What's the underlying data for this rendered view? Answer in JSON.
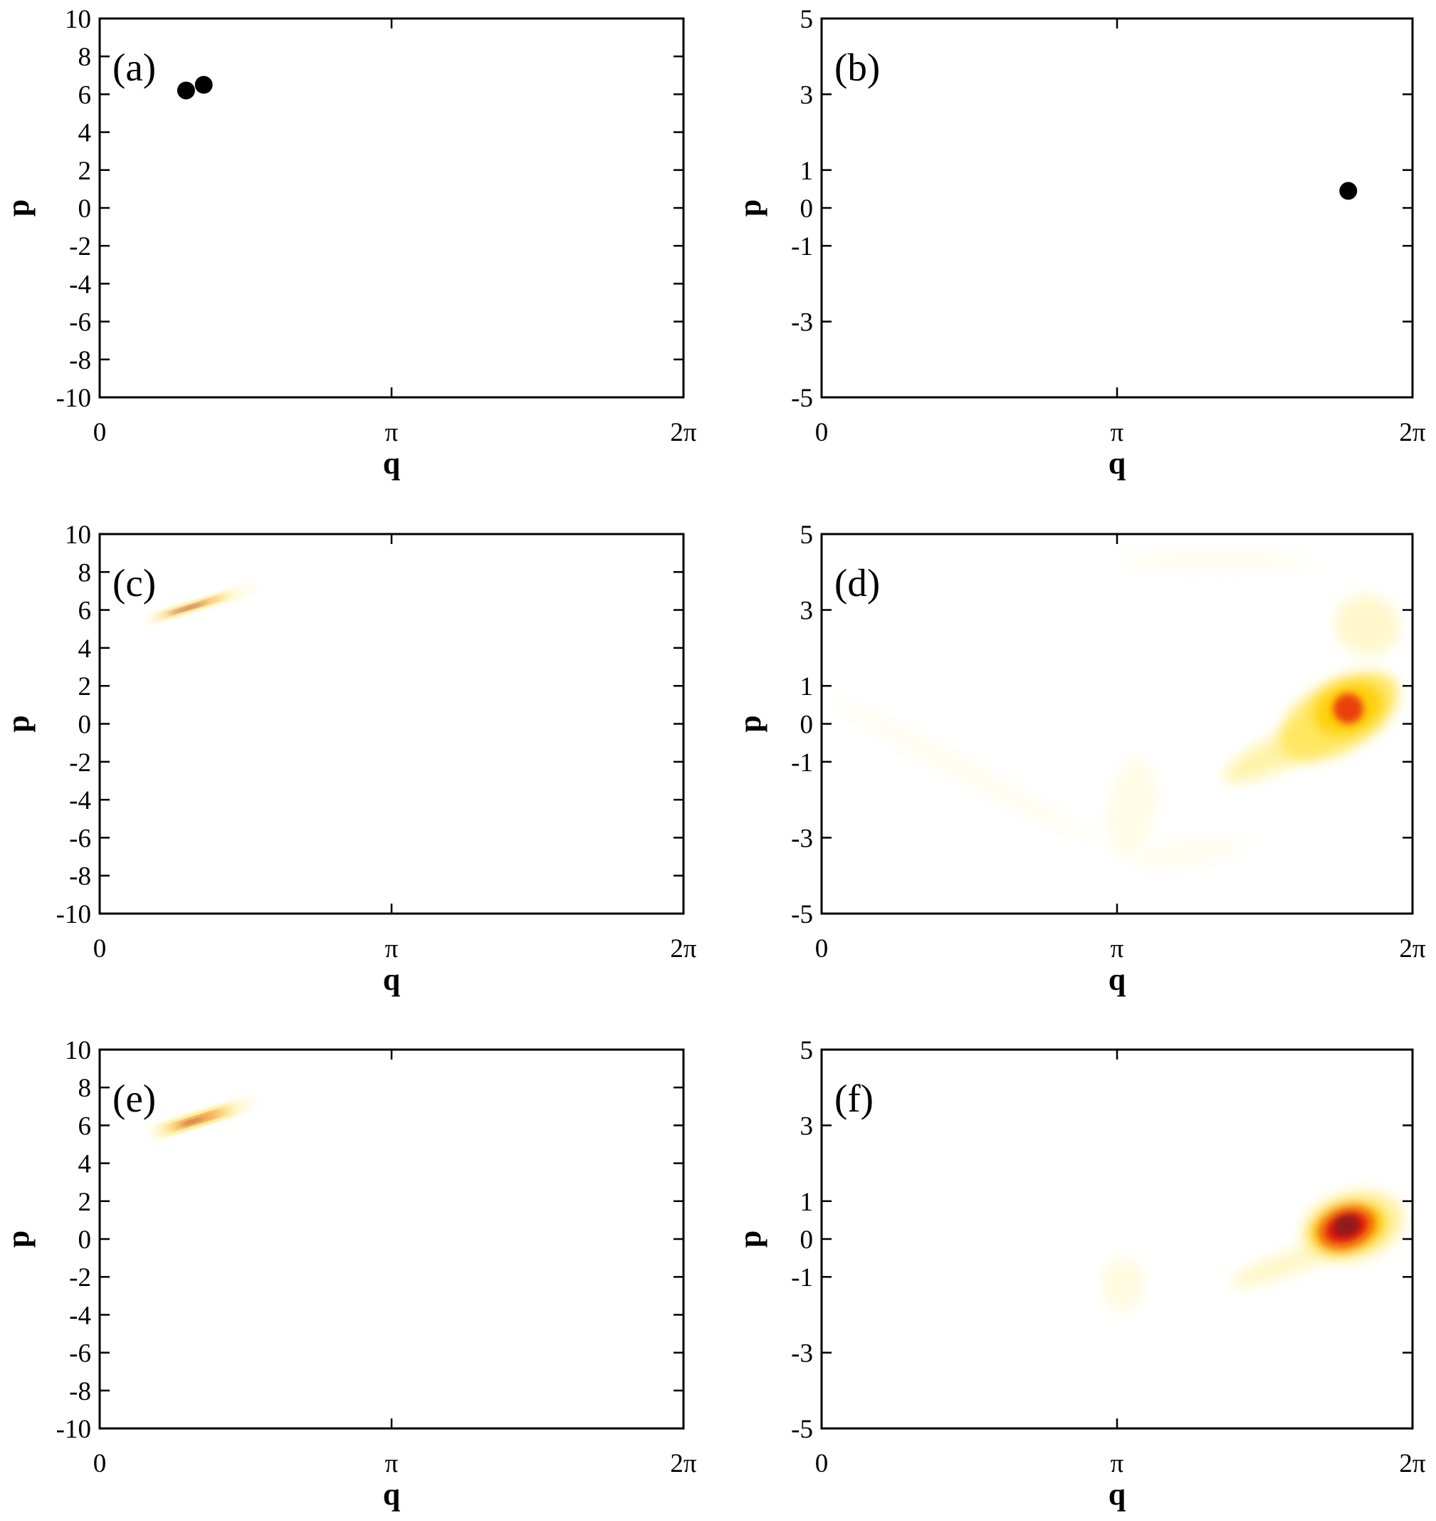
{
  "chart_data": [
    {
      "panel": "(a)",
      "type": "scatter",
      "xlabel": "q",
      "ylabel": "p",
      "xlim": [
        0,
        6.2832
      ],
      "ylim": [
        -10,
        10
      ],
      "x_ticks": [
        {
          "v": 0,
          "label": "0"
        },
        {
          "v": 3.1416,
          "label": "π"
        },
        {
          "v": 6.2832,
          "label": "2π"
        }
      ],
      "y_ticks": [
        {
          "v": 10,
          "label": "10"
        },
        {
          "v": 8,
          "label": "8"
        },
        {
          "v": 6,
          "label": "6"
        },
        {
          "v": 4,
          "label": "4"
        },
        {
          "v": 2,
          "label": "2"
        },
        {
          "v": 0,
          "label": "0"
        },
        {
          "v": -2,
          "label": "-2"
        },
        {
          "v": -4,
          "label": "-4"
        },
        {
          "v": -6,
          "label": "-6"
        },
        {
          "v": -8,
          "label": "-8"
        },
        {
          "v": -10,
          "label": "-10"
        }
      ],
      "points": [
        {
          "x": 0.93,
          "y": 6.2
        },
        {
          "x": 1.12,
          "y": 6.5
        }
      ],
      "blobs": []
    },
    {
      "panel": "(b)",
      "type": "scatter",
      "xlabel": "q",
      "ylabel": "p",
      "xlim": [
        0,
        6.2832
      ],
      "ylim": [
        -5,
        5
      ],
      "x_ticks": [
        {
          "v": 0,
          "label": "0"
        },
        {
          "v": 3.1416,
          "label": "π"
        },
        {
          "v": 6.2832,
          "label": "2π"
        }
      ],
      "y_ticks": [
        {
          "v": 5,
          "label": "5"
        },
        {
          "v": 3,
          "label": "3"
        },
        {
          "v": 1,
          "label": "1"
        },
        {
          "v": 0,
          "label": "0"
        },
        {
          "v": -1,
          "label": "-1"
        },
        {
          "v": -3,
          "label": "-3"
        },
        {
          "v": -5,
          "label": "-5"
        }
      ],
      "points": [
        {
          "x": 5.6,
          "y": 0.45
        }
      ],
      "blobs": []
    },
    {
      "panel": "(c)",
      "type": "heatmap",
      "xlabel": "q",
      "ylabel": "p",
      "xlim": [
        0,
        6.2832
      ],
      "ylim": [
        -10,
        10
      ],
      "x_ticks": [
        {
          "v": 0,
          "label": "0"
        },
        {
          "v": 3.1416,
          "label": "π"
        },
        {
          "v": 6.2832,
          "label": "2π"
        }
      ],
      "y_ticks": [
        {
          "v": 10,
          "label": "10"
        },
        {
          "v": 8,
          "label": "8"
        },
        {
          "v": 6,
          "label": "6"
        },
        {
          "v": 4,
          "label": "4"
        },
        {
          "v": 2,
          "label": "2"
        },
        {
          "v": 0,
          "label": "0"
        },
        {
          "v": -2,
          "label": "-2"
        },
        {
          "v": -4,
          "label": "-4"
        },
        {
          "v": -6,
          "label": "-6"
        },
        {
          "v": -8,
          "label": "-8"
        },
        {
          "v": -10,
          "label": "-10"
        }
      ],
      "points": [],
      "blobs": [
        {
          "x": 1.1,
          "y": 6.3,
          "sx": 0.62,
          "sy": 0.2,
          "angle": -17,
          "color": "#fff4b0",
          "opacity": 0.9
        },
        {
          "x": 1.0,
          "y": 6.2,
          "sx": 0.45,
          "sy": 0.14,
          "angle": -17,
          "color": "#ffd000",
          "opacity": 1
        },
        {
          "x": 1.0,
          "y": 6.2,
          "sx": 0.34,
          "sy": 0.08,
          "angle": -17,
          "color": "#d01010",
          "opacity": 1
        },
        {
          "x": 0.95,
          "y": 6.1,
          "sx": 0.2,
          "sy": 0.05,
          "angle": -17,
          "color": "#5a1010",
          "opacity": 0.9
        }
      ]
    },
    {
      "panel": "(d)",
      "type": "heatmap",
      "xlabel": "q",
      "ylabel": "p",
      "xlim": [
        0,
        6.2832
      ],
      "ylim": [
        -5,
        5
      ],
      "x_ticks": [
        {
          "v": 0,
          "label": "0"
        },
        {
          "v": 3.1416,
          "label": "π"
        },
        {
          "v": 6.2832,
          "label": "2π"
        }
      ],
      "y_ticks": [
        {
          "v": 5,
          "label": "5"
        },
        {
          "v": 3,
          "label": "3"
        },
        {
          "v": 1,
          "label": "1"
        },
        {
          "v": 0,
          "label": "0"
        },
        {
          "v": -1,
          "label": "-1"
        },
        {
          "v": -3,
          "label": "-3"
        },
        {
          "v": -5,
          "label": "-5"
        }
      ],
      "points": [],
      "blobs": [
        {
          "x": 3.3,
          "y": -2.2,
          "sx": 0.25,
          "sy": 1.3,
          "angle": 10,
          "color": "#fffbe0",
          "opacity": 0.8
        },
        {
          "x": 3.9,
          "y": -3.4,
          "sx": 0.6,
          "sy": 0.35,
          "angle": -10,
          "color": "#fffbe8",
          "opacity": 0.7
        },
        {
          "x": 1.5,
          "y": -1.2,
          "sx": 1.6,
          "sy": 0.3,
          "angle": 28,
          "color": "#fffbe8",
          "opacity": 0.6
        },
        {
          "x": 4.2,
          "y": 4.3,
          "sx": 1.0,
          "sy": 0.3,
          "angle": 0,
          "color": "#fffbe8",
          "opacity": 0.6
        },
        {
          "x": 5.8,
          "y": 2.6,
          "sx": 0.35,
          "sy": 0.8,
          "angle": 20,
          "color": "#fff6c0",
          "opacity": 0.8
        },
        {
          "x": 5.0,
          "y": -0.6,
          "sx": 0.8,
          "sy": 0.45,
          "angle": -25,
          "color": "#fff2a0",
          "opacity": 0.9
        },
        {
          "x": 5.5,
          "y": 0.2,
          "sx": 0.7,
          "sy": 0.9,
          "angle": -30,
          "color": "#ffe65a",
          "opacity": 0.9
        },
        {
          "x": 5.6,
          "y": 0.4,
          "sx": 0.38,
          "sy": 0.65,
          "angle": -20,
          "color": "#ffcc00",
          "opacity": 0.9
        },
        {
          "x": 5.6,
          "y": 0.4,
          "sx": 0.16,
          "sy": 0.4,
          "angle": -15,
          "color": "#e83010",
          "opacity": 0.9
        }
      ]
    },
    {
      "panel": "(e)",
      "type": "heatmap",
      "xlabel": "q",
      "ylabel": "p",
      "xlim": [
        0,
        6.2832
      ],
      "ylim": [
        -10,
        10
      ],
      "x_ticks": [
        {
          "v": 0,
          "label": "0"
        },
        {
          "v": 3.1416,
          "label": "π"
        },
        {
          "v": 6.2832,
          "label": "2π"
        }
      ],
      "y_ticks": [
        {
          "v": 10,
          "label": "10"
        },
        {
          "v": 8,
          "label": "8"
        },
        {
          "v": 6,
          "label": "6"
        },
        {
          "v": 4,
          "label": "4"
        },
        {
          "v": 2,
          "label": "2"
        },
        {
          "v": 0,
          "label": "0"
        },
        {
          "v": -2,
          "label": "-2"
        },
        {
          "v": -4,
          "label": "-4"
        },
        {
          "v": -6,
          "label": "-6"
        },
        {
          "v": -8,
          "label": "-8"
        },
        {
          "v": -10,
          "label": "-10"
        }
      ],
      "points": [],
      "blobs": [
        {
          "x": 1.1,
          "y": 6.4,
          "sx": 0.6,
          "sy": 0.28,
          "angle": -17,
          "color": "#fff4b0",
          "opacity": 0.9
        },
        {
          "x": 1.05,
          "y": 6.3,
          "sx": 0.44,
          "sy": 0.2,
          "angle": -17,
          "color": "#ffd000",
          "opacity": 1
        },
        {
          "x": 1.05,
          "y": 6.3,
          "sx": 0.3,
          "sy": 0.12,
          "angle": -17,
          "color": "#e01818",
          "opacity": 1
        },
        {
          "x": 1.0,
          "y": 6.2,
          "sx": 0.14,
          "sy": 0.06,
          "angle": -17,
          "color": "#6a1010",
          "opacity": 0.8
        }
      ]
    },
    {
      "panel": "(f)",
      "type": "heatmap",
      "xlabel": "q",
      "ylabel": "p",
      "xlim": [
        0,
        6.2832
      ],
      "ylim": [
        -5,
        5
      ],
      "x_ticks": [
        {
          "v": 0,
          "label": "0"
        },
        {
          "v": 3.1416,
          "label": "π"
        },
        {
          "v": 6.2832,
          "label": "2π"
        }
      ],
      "y_ticks": [
        {
          "v": 5,
          "label": "5"
        },
        {
          "v": 3,
          "label": "3"
        },
        {
          "v": 1,
          "label": "1"
        },
        {
          "v": 0,
          "label": "0"
        },
        {
          "v": -1,
          "label": "-1"
        },
        {
          "v": -3,
          "label": "-3"
        },
        {
          "v": -5,
          "label": "-5"
        }
      ],
      "points": [],
      "blobs": [
        {
          "x": 3.2,
          "y": -1.2,
          "sx": 0.22,
          "sy": 0.7,
          "angle": 0,
          "color": "#fffadc",
          "opacity": 0.9
        },
        {
          "x": 5.0,
          "y": -0.6,
          "sx": 0.7,
          "sy": 0.3,
          "angle": -20,
          "color": "#fff6c0",
          "opacity": 0.9
        },
        {
          "x": 5.65,
          "y": 0.35,
          "sx": 0.55,
          "sy": 0.9,
          "angle": -15,
          "color": "#fff09a",
          "opacity": 0.9
        },
        {
          "x": 5.6,
          "y": 0.3,
          "sx": 0.4,
          "sy": 0.6,
          "angle": -15,
          "color": "#ffcc00",
          "opacity": 1
        },
        {
          "x": 5.58,
          "y": 0.3,
          "sx": 0.28,
          "sy": 0.45,
          "angle": -20,
          "color": "#e01010",
          "opacity": 1
        },
        {
          "x": 5.58,
          "y": 0.35,
          "sx": 0.14,
          "sy": 0.28,
          "angle": -20,
          "color": "#8a1a1a",
          "opacity": 0.95
        }
      ]
    }
  ]
}
